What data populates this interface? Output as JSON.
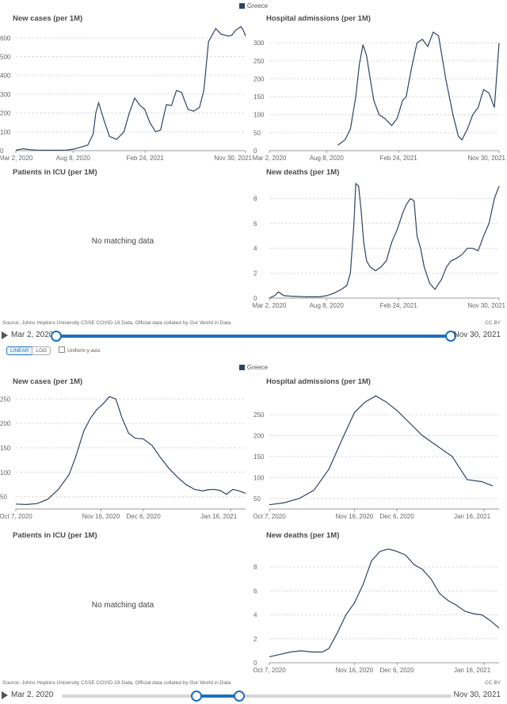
{
  "legend": {
    "label": "Greece",
    "color": "#2f4463"
  },
  "top": {
    "source": "Source: Johns Hopkins University CSSE COVID-19 Data, Official data collated by Our World in Data",
    "license": "CC BY",
    "timeline": {
      "start": "Mar 2, 2020",
      "end": "Nov 30, 2021",
      "range": [
        0.0,
        1.0
      ]
    }
  },
  "controls": {
    "linear_label": "LINEAR",
    "log_label": "LOG",
    "uniform_label": "Uniform y-axis"
  },
  "bottom": {
    "source": "Source: Johns Hopkins University CSSE COVID-19 Data, Official data collated by Our World in Data",
    "license": "CC BY",
    "timeline": {
      "start": "Mar 2, 2020",
      "end": "Nov 30, 2021",
      "range": [
        0.343,
        0.453
      ]
    }
  },
  "chart_data": [
    {
      "type": "line",
      "title": "New cases (per 1M)",
      "x_range": [
        0,
        638
      ],
      "ylim": [
        0,
        650
      ],
      "yticks": [
        0,
        100,
        200,
        300,
        400,
        500,
        600
      ],
      "xticks": [
        {
          "x": 0,
          "label": "Mar 2, 2020"
        },
        {
          "x": 159,
          "label": "Aug 8, 2020"
        },
        {
          "x": 359,
          "label": "Feb 24, 2021"
        },
        {
          "x": 638,
          "label": "Nov 30, 2021"
        }
      ],
      "series": [
        {
          "x": [
            0,
            20,
            40,
            60,
            100,
            140,
            160,
            180,
            200,
            215,
            222,
            230,
            245,
            260,
            280,
            300,
            315,
            330,
            345,
            358,
            372,
            388,
            402,
            418,
            432,
            446,
            460,
            478,
            494,
            510,
            522,
            535,
            555,
            570,
            590,
            600,
            610,
            625,
            632,
            638
          ],
          "y": [
            2,
            10,
            5,
            3,
            2,
            3,
            8,
            18,
            30,
            90,
            200,
            255,
            160,
            75,
            60,
            100,
            200,
            280,
            240,
            220,
            150,
            100,
            110,
            245,
            240,
            320,
            310,
            220,
            210,
            230,
            320,
            580,
            650,
            620,
            610,
            615,
            640,
            660,
            640,
            610
          ]
        }
      ]
    },
    {
      "type": "line",
      "title": "Hospital admissions (per 1M)",
      "x_range": [
        0,
        638
      ],
      "ylim": [
        0,
        340
      ],
      "yticks": [
        0,
        50,
        100,
        150,
        200,
        250,
        300
      ],
      "xticks": [
        {
          "x": 0,
          "label": "Mar 2, 2020"
        },
        {
          "x": 159,
          "label": "Aug 8, 2020"
        },
        {
          "x": 359,
          "label": "Feb 24, 2021"
        },
        {
          "x": 638,
          "label": "Nov 30, 2021"
        }
      ],
      "series": [
        {
          "x": [
            190,
            210,
            225,
            240,
            250,
            260,
            270,
            280,
            290,
            305,
            320,
            340,
            355,
            370,
            380,
            395,
            410,
            425,
            440,
            455,
            470,
            490,
            510,
            525,
            535,
            550,
            565,
            580,
            595,
            610,
            625,
            638
          ],
          "y": [
            15,
            30,
            60,
            150,
            240,
            295,
            265,
            200,
            140,
            100,
            90,
            70,
            90,
            140,
            150,
            230,
            300,
            310,
            290,
            330,
            320,
            200,
            100,
            40,
            30,
            60,
            100,
            120,
            170,
            160,
            120,
            300
          ]
        }
      ]
    },
    {
      "type": "line",
      "title": "Patients in ICU (per 1M)",
      "no_data": "No matching data"
    },
    {
      "type": "line",
      "title": "New deaths (per 1M)",
      "x_range": [
        0,
        638
      ],
      "ylim": [
        0,
        9.3
      ],
      "yticks": [
        0,
        2,
        4,
        6,
        8
      ],
      "xticks": [
        {
          "x": 0,
          "label": "Mar 2, 2020"
        },
        {
          "x": 159,
          "label": "Aug 8, 2020"
        },
        {
          "x": 359,
          "label": "Feb 24, 2021"
        },
        {
          "x": 638,
          "label": "Nov 30, 2021"
        }
      ],
      "series": [
        {
          "x": [
            0,
            15,
            25,
            40,
            60,
            100,
            140,
            160,
            180,
            200,
            215,
            225,
            235,
            240,
            248,
            255,
            262,
            270,
            280,
            295,
            310,
            325,
            340,
            355,
            370,
            380,
            392,
            402,
            410,
            420,
            430,
            445,
            460,
            478,
            492,
            505,
            520,
            535,
            550,
            565,
            580,
            595,
            610,
            625,
            638
          ],
          "y": [
            0,
            0.2,
            0.5,
            0.2,
            0.15,
            0.1,
            0.1,
            0.2,
            0.4,
            0.7,
            1.0,
            2.0,
            6.0,
            9.2,
            9.0,
            7.0,
            4.5,
            3.0,
            2.5,
            2.2,
            2.5,
            3.0,
            4.5,
            5.5,
            6.8,
            7.5,
            8.0,
            7.8,
            5.0,
            4.0,
            2.5,
            1.2,
            0.7,
            1.5,
            2.5,
            3.0,
            3.2,
            3.5,
            4.0,
            4.0,
            3.8,
            5.0,
            6.0,
            8.0,
            9.0
          ]
        }
      ]
    },
    {
      "type": "line",
      "title": "New cases (per 1M)",
      "x_range": [
        0,
        108
      ],
      "ylim": [
        25,
        265
      ],
      "yticks": [
        50,
        100,
        150,
        200,
        250
      ],
      "xticks": [
        {
          "x": 0,
          "label": "Oct 7, 2020"
        },
        {
          "x": 40,
          "label": "Nov 16, 2020"
        },
        {
          "x": 60,
          "label": "Dec 6, 2020"
        },
        {
          "x": 101,
          "label": "Jan 16, 2021"
        }
      ],
      "series": [
        {
          "x": [
            0,
            5,
            10,
            15,
            20,
            25,
            28,
            32,
            35,
            38,
            41,
            44,
            47,
            50,
            53,
            56,
            60,
            64,
            68,
            72,
            76,
            80,
            84,
            88,
            90,
            93,
            96,
            99,
            102,
            105,
            108
          ],
          "y": [
            35,
            34,
            36,
            45,
            65,
            95,
            130,
            185,
            210,
            228,
            240,
            255,
            250,
            210,
            180,
            170,
            168,
            155,
            130,
            108,
            90,
            75,
            65,
            62,
            64,
            65,
            63,
            55,
            65,
            62,
            57
          ]
        }
      ]
    },
    {
      "type": "line",
      "title": "Hospital admissions (per 1M)",
      "x_range": [
        0,
        108
      ],
      "ylim": [
        25,
        305
      ],
      "yticks": [
        50,
        100,
        150,
        200,
        250
      ],
      "xticks": [
        {
          "x": 0,
          "label": "Oct 7, 2020"
        },
        {
          "x": 40,
          "label": "Nov 16, 2020"
        },
        {
          "x": 60,
          "label": "Dec 6, 2020"
        },
        {
          "x": 101,
          "label": "Jan 16, 2021"
        }
      ],
      "series": [
        {
          "x": [
            0,
            7,
            14,
            21,
            28,
            35,
            40,
            45,
            50,
            55,
            60,
            65,
            72,
            79,
            86,
            93,
            100,
            105
          ],
          "y": [
            35,
            40,
            50,
            70,
            120,
            200,
            255,
            280,
            295,
            280,
            260,
            235,
            200,
            175,
            150,
            95,
            90,
            80
          ]
        }
      ]
    },
    {
      "type": "line",
      "title": "Patients in ICU (per 1M)",
      "no_data": "No matching data"
    },
    {
      "type": "line",
      "title": "New deaths (per 1M)",
      "x_range": [
        0,
        108
      ],
      "ylim": [
        0,
        9.8
      ],
      "yticks": [
        0,
        2,
        4,
        6,
        8
      ],
      "xticks": [
        {
          "x": 0,
          "label": "Oct 7, 2020"
        },
        {
          "x": 40,
          "label": "Nov 16, 2020"
        },
        {
          "x": 60,
          "label": "Dec 6, 2020"
        },
        {
          "x": 101,
          "label": "Jan 16, 2021"
        }
      ],
      "series": [
        {
          "x": [
            0,
            5,
            10,
            15,
            20,
            25,
            28,
            32,
            36,
            40,
            44,
            48,
            52,
            56,
            60,
            64,
            68,
            72,
            76,
            80,
            84,
            88,
            92,
            96,
            100,
            104,
            108
          ],
          "y": [
            0.5,
            0.7,
            0.9,
            1.0,
            0.9,
            0.9,
            1.2,
            2.5,
            4.0,
            5.0,
            6.5,
            8.5,
            9.3,
            9.5,
            9.3,
            9.0,
            8.2,
            7.8,
            7.0,
            5.8,
            5.2,
            4.8,
            4.3,
            4.1,
            4.0,
            3.5,
            2.9
          ]
        }
      ]
    }
  ]
}
